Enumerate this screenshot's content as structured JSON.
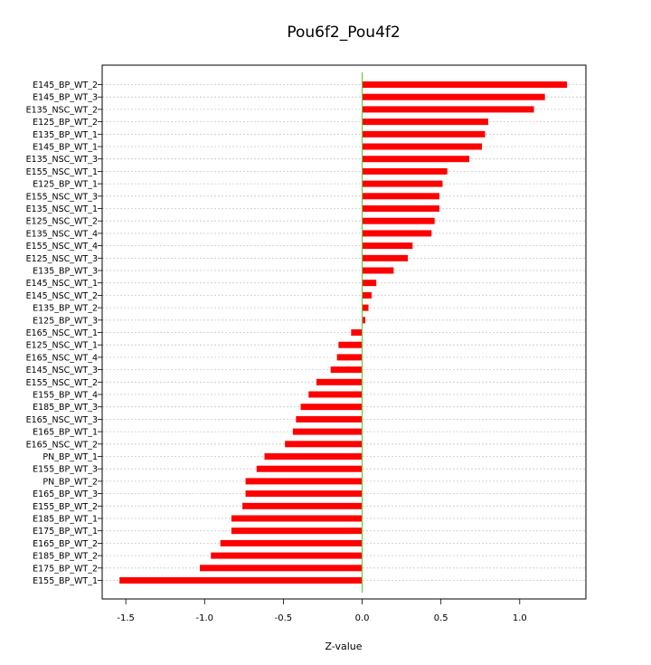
{
  "chart_data": {
    "type": "bar",
    "orientation": "horizontal",
    "title": "Pou6f2_Pou4f2",
    "xlabel": "Z-value",
    "ylabel": "",
    "xlim": [
      -1.65,
      1.42
    ],
    "xticks": [
      -1.5,
      -1.0,
      -0.5,
      0.0,
      0.5,
      1.0
    ],
    "xtick_labels": [
      "-1.5",
      "-1.0",
      "-0.5",
      "0.0",
      "0.5",
      "1.0"
    ],
    "grid": "horizontal dotted lines per category",
    "zero_line_color": "#66cc44",
    "bar_color": "#ff0000",
    "categories": [
      "E145_BP_WT_2",
      "E145_BP_WT_3",
      "E135_NSC_WT_2",
      "E125_BP_WT_2",
      "E135_BP_WT_1",
      "E145_BP_WT_1",
      "E135_NSC_WT_3",
      "E155_NSC_WT_1",
      "E125_BP_WT_1",
      "E155_NSC_WT_3",
      "E135_NSC_WT_1",
      "E125_NSC_WT_2",
      "E135_NSC_WT_4",
      "E155_NSC_WT_4",
      "E125_NSC_WT_3",
      "E135_BP_WT_3",
      "E145_NSC_WT_1",
      "E145_NSC_WT_2",
      "E135_BP_WT_2",
      "E125_BP_WT_3",
      "E165_NSC_WT_1",
      "E125_NSC_WT_1",
      "E165_NSC_WT_4",
      "E145_NSC_WT_3",
      "E155_NSC_WT_2",
      "E155_BP_WT_4",
      "E185_BP_WT_3",
      "E165_NSC_WT_3",
      "E165_BP_WT_1",
      "E165_NSC_WT_2",
      "PN_BP_WT_1",
      "E155_BP_WT_3",
      "PN_BP_WT_2",
      "E165_BP_WT_3",
      "E155_BP_WT_2",
      "E185_BP_WT_1",
      "E175_BP_WT_1",
      "E165_BP_WT_2",
      "E185_BP_WT_2",
      "E175_BP_WT_2",
      "E155_BP_WT_1"
    ],
    "values": [
      1.3,
      1.16,
      1.09,
      0.8,
      0.78,
      0.76,
      0.68,
      0.54,
      0.51,
      0.49,
      0.49,
      0.46,
      0.44,
      0.32,
      0.29,
      0.2,
      0.09,
      0.06,
      0.04,
      0.02,
      -0.07,
      -0.15,
      -0.16,
      -0.2,
      -0.29,
      -0.34,
      -0.39,
      -0.42,
      -0.44,
      -0.49,
      -0.62,
      -0.67,
      -0.74,
      -0.74,
      -0.76,
      -0.83,
      -0.83,
      -0.9,
      -0.96,
      -1.03,
      -1.54
    ]
  }
}
